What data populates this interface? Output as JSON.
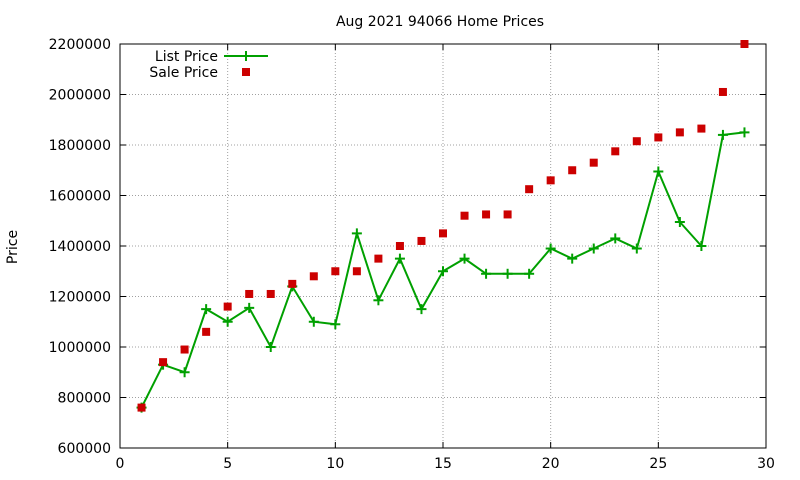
{
  "chart_data": {
    "type": "line",
    "title": "Aug 2021 94066 Home Prices",
    "xlabel": "",
    "ylabel": "Price",
    "xlim": [
      0,
      30
    ],
    "ylim": [
      600000,
      2200000
    ],
    "x_ticks": [
      0,
      5,
      10,
      15,
      20,
      25,
      30
    ],
    "y_ticks": [
      600000,
      800000,
      1000000,
      1200000,
      1400000,
      1600000,
      1800000,
      2000000,
      2200000
    ],
    "x_tick_labels": [
      "0",
      "5",
      "10",
      "15",
      "20",
      "25",
      "30"
    ],
    "y_tick_labels": [
      "600000",
      "800000",
      "1000000",
      "1200000",
      "1400000",
      "1600000",
      "1800000",
      "2000000",
      "2200000"
    ],
    "grid": true,
    "legend_position": "top-left",
    "x": [
      1,
      2,
      3,
      4,
      5,
      6,
      7,
      8,
      9,
      10,
      11,
      12,
      13,
      14,
      15,
      16,
      17,
      18,
      19,
      20,
      21,
      22,
      23,
      24,
      25,
      26,
      27,
      28,
      29
    ],
    "series": [
      {
        "name": "List Price",
        "style": "linespoints",
        "marker": "plus",
        "color": "#00a000",
        "values": [
          760000,
          930000,
          900000,
          1150000,
          1100000,
          1155000,
          1000000,
          1240000,
          1100000,
          1090000,
          1450000,
          1185000,
          1350000,
          1150000,
          1300000,
          1350000,
          1290000,
          1290000,
          1290000,
          1390000,
          1350000,
          1390000,
          1430000,
          1390000,
          1695000,
          1495000,
          1400000,
          1840000,
          1850000
        ]
      },
      {
        "name": "Sale Price",
        "style": "points",
        "marker": "square",
        "color": "#cc0000",
        "values": [
          760000,
          940000,
          990000,
          1060000,
          1160000,
          1210000,
          1210000,
          1250000,
          1280000,
          1300000,
          1300000,
          1350000,
          1400000,
          1420000,
          1450000,
          1520000,
          1525000,
          1525000,
          1625000,
          1660000,
          1700000,
          1730000,
          1775000,
          1815000,
          1830000,
          1850000,
          1865000,
          2010000,
          2200000
        ]
      }
    ]
  }
}
